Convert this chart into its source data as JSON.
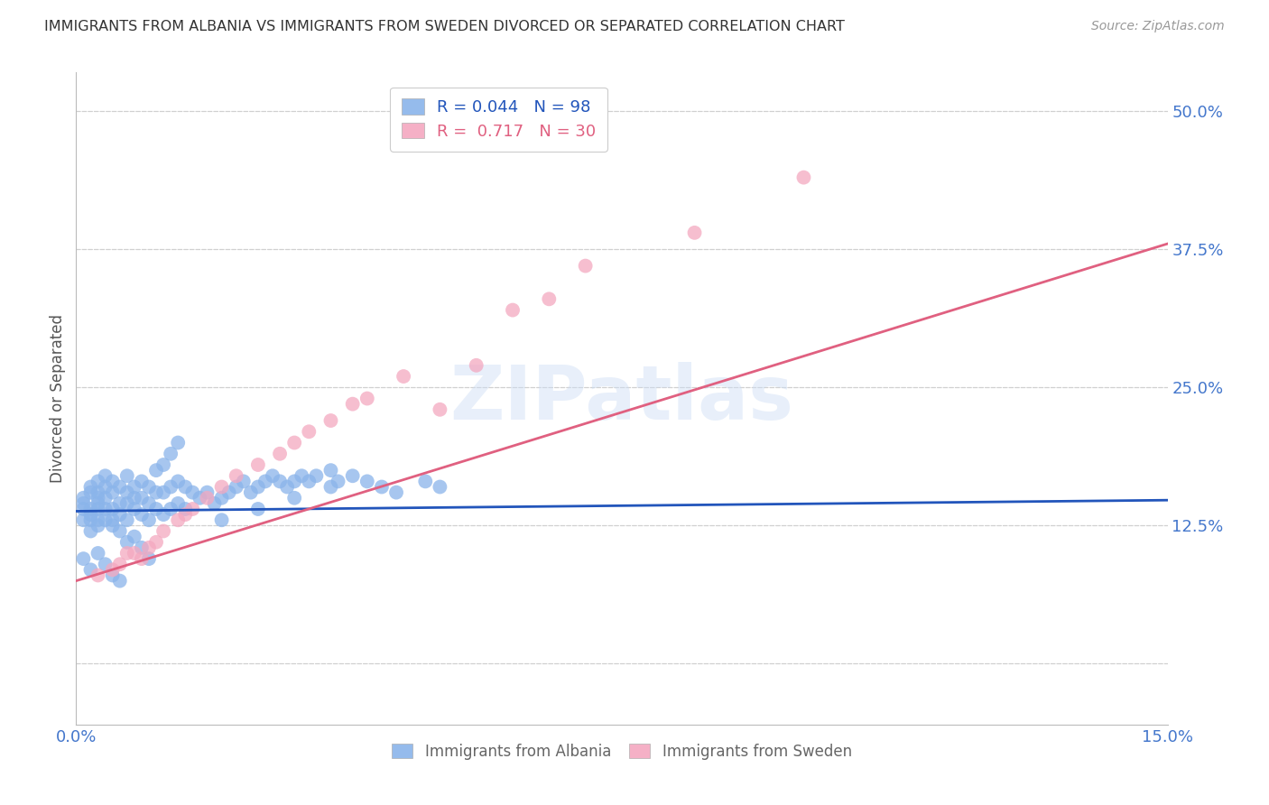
{
  "title": "IMMIGRANTS FROM ALBANIA VS IMMIGRANTS FROM SWEDEN DIVORCED OR SEPARATED CORRELATION CHART",
  "source": "Source: ZipAtlas.com",
  "ylabel": "Divorced or Separated",
  "xlim": [
    0.0,
    0.15
  ],
  "ylim": [
    -0.055,
    0.535
  ],
  "yticks": [
    0.0,
    0.125,
    0.25,
    0.375,
    0.5
  ],
  "ytick_labels": [
    "",
    "12.5%",
    "25.0%",
    "37.5%",
    "50.0%"
  ],
  "background_color": "#ffffff",
  "grid_color": "#d0d0d0",
  "albania_color": "#8ab4ea",
  "sweden_color": "#f4a8c0",
  "albania_line_color": "#2255bb",
  "sweden_line_color": "#e06080",
  "axis_label_color": "#4477cc",
  "title_color": "#333333",
  "albania_N": 98,
  "sweden_N": 30,
  "albania_line_x": [
    0.0,
    0.15
  ],
  "albania_line_y": [
    0.138,
    0.148
  ],
  "sweden_line_x": [
    0.0,
    0.15
  ],
  "sweden_line_y": [
    0.075,
    0.38
  ],
  "albania_x": [
    0.001,
    0.001,
    0.001,
    0.001,
    0.002,
    0.002,
    0.002,
    0.002,
    0.002,
    0.002,
    0.003,
    0.003,
    0.003,
    0.003,
    0.003,
    0.003,
    0.003,
    0.004,
    0.004,
    0.004,
    0.004,
    0.004,
    0.005,
    0.005,
    0.005,
    0.005,
    0.005,
    0.006,
    0.006,
    0.006,
    0.006,
    0.007,
    0.007,
    0.007,
    0.007,
    0.008,
    0.008,
    0.008,
    0.009,
    0.009,
    0.009,
    0.01,
    0.01,
    0.01,
    0.011,
    0.011,
    0.012,
    0.012,
    0.013,
    0.013,
    0.014,
    0.014,
    0.015,
    0.015,
    0.016,
    0.017,
    0.018,
    0.019,
    0.02,
    0.021,
    0.022,
    0.023,
    0.024,
    0.025,
    0.026,
    0.027,
    0.028,
    0.029,
    0.03,
    0.031,
    0.032,
    0.033,
    0.035,
    0.036,
    0.038,
    0.04,
    0.042,
    0.044,
    0.048,
    0.05,
    0.001,
    0.002,
    0.003,
    0.004,
    0.005,
    0.006,
    0.007,
    0.008,
    0.009,
    0.01,
    0.011,
    0.012,
    0.013,
    0.014,
    0.02,
    0.025,
    0.03,
    0.035
  ],
  "albania_y": [
    0.14,
    0.145,
    0.13,
    0.15,
    0.12,
    0.135,
    0.14,
    0.155,
    0.16,
    0.13,
    0.125,
    0.13,
    0.14,
    0.145,
    0.15,
    0.155,
    0.165,
    0.13,
    0.14,
    0.15,
    0.16,
    0.17,
    0.125,
    0.13,
    0.14,
    0.155,
    0.165,
    0.12,
    0.135,
    0.145,
    0.16,
    0.13,
    0.145,
    0.155,
    0.17,
    0.14,
    0.15,
    0.16,
    0.135,
    0.15,
    0.165,
    0.13,
    0.145,
    0.16,
    0.14,
    0.155,
    0.135,
    0.155,
    0.14,
    0.16,
    0.145,
    0.165,
    0.14,
    0.16,
    0.155,
    0.15,
    0.155,
    0.145,
    0.15,
    0.155,
    0.16,
    0.165,
    0.155,
    0.16,
    0.165,
    0.17,
    0.165,
    0.16,
    0.165,
    0.17,
    0.165,
    0.17,
    0.175,
    0.165,
    0.17,
    0.165,
    0.16,
    0.155,
    0.165,
    0.16,
    0.095,
    0.085,
    0.1,
    0.09,
    0.08,
    0.075,
    0.11,
    0.115,
    0.105,
    0.095,
    0.175,
    0.18,
    0.19,
    0.2,
    0.13,
    0.14,
    0.15,
    0.16
  ],
  "sweden_x": [
    0.003,
    0.005,
    0.006,
    0.007,
    0.008,
    0.009,
    0.01,
    0.011,
    0.012,
    0.014,
    0.015,
    0.016,
    0.018,
    0.02,
    0.022,
    0.025,
    0.028,
    0.03,
    0.032,
    0.035,
    0.038,
    0.04,
    0.045,
    0.05,
    0.055,
    0.06,
    0.065,
    0.07,
    0.085,
    0.1
  ],
  "sweden_y": [
    0.08,
    0.085,
    0.09,
    0.1,
    0.1,
    0.095,
    0.105,
    0.11,
    0.12,
    0.13,
    0.135,
    0.14,
    0.15,
    0.16,
    0.17,
    0.18,
    0.19,
    0.2,
    0.21,
    0.22,
    0.235,
    0.24,
    0.26,
    0.23,
    0.27,
    0.32,
    0.33,
    0.36,
    0.39,
    0.44
  ]
}
